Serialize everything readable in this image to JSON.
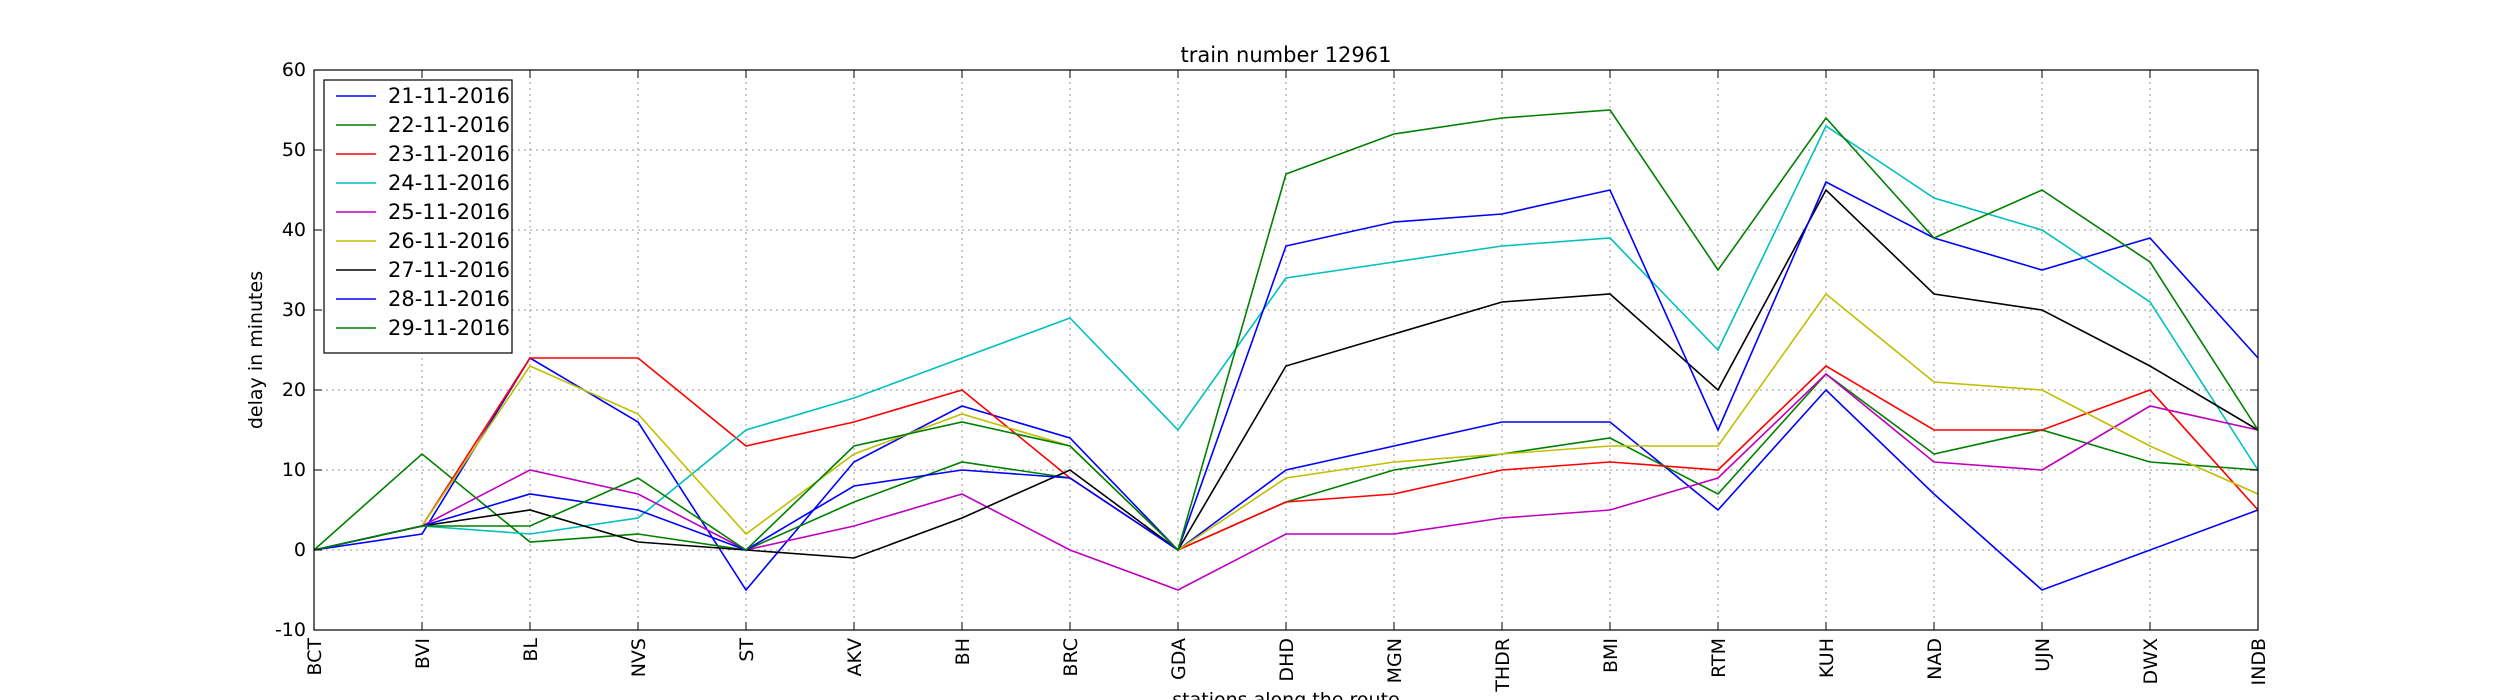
{
  "chart_data": {
    "type": "line",
    "title": "train number 12961",
    "xlabel": "stations along the route",
    "ylabel": "delay in minutes",
    "ylim": [
      -10,
      60
    ],
    "yticks": [
      -10,
      0,
      10,
      20,
      30,
      40,
      50,
      60
    ],
    "grid": true,
    "legend_position": "top-left",
    "categories": [
      "BCT",
      "BVI",
      "BL",
      "NVS",
      "ST",
      "AKV",
      "BH",
      "BRC",
      "GDA",
      "DHD",
      "MGN",
      "THDR",
      "BMI",
      "RTM",
      "KUH",
      "NAD",
      "UJN",
      "DWX",
      "INDB"
    ],
    "series": [
      {
        "name": "21-11-2016",
        "color": "#0000ff",
        "values": [
          0,
          2,
          24,
          16,
          -5,
          11,
          18,
          14,
          0,
          10,
          13,
          16,
          16,
          5,
          20,
          7,
          -5,
          0,
          5
        ]
      },
      {
        "name": "22-11-2016",
        "color": "#008000",
        "values": [
          0,
          12,
          1,
          2,
          0,
          6,
          11,
          9,
          0,
          6,
          10,
          12,
          14,
          7,
          22,
          12,
          15,
          11,
          10
        ]
      },
      {
        "name": "23-11-2016",
        "color": "#ff0000",
        "values": [
          0,
          3,
          24,
          24,
          13,
          16,
          20,
          9,
          0,
          6,
          7,
          10,
          11,
          10,
          23,
          15,
          15,
          20,
          5
        ]
      },
      {
        "name": "24-11-2016",
        "color": "#00bfbf",
        "values": [
          0,
          3,
          2,
          4,
          15,
          19,
          24,
          29,
          15,
          34,
          36,
          38,
          39,
          25,
          53,
          44,
          40,
          31,
          10
        ]
      },
      {
        "name": "25-11-2016",
        "color": "#bf00bf",
        "values": [
          0,
          3,
          10,
          7,
          0,
          3,
          7,
          0,
          -5,
          2,
          2,
          4,
          5,
          9,
          22,
          11,
          10,
          18,
          15
        ]
      },
      {
        "name": "26-11-2016",
        "color": "#bfbf00",
        "values": [
          0,
          3,
          23,
          17,
          2,
          12,
          17,
          13,
          0,
          9,
          11,
          12,
          13,
          13,
          32,
          21,
          20,
          13,
          7
        ]
      },
      {
        "name": "27-11-2016",
        "color": "#000000",
        "values": [
          0,
          3,
          5,
          1,
          0,
          -1,
          4,
          10,
          0,
          23,
          27,
          31,
          32,
          20,
          45,
          32,
          30,
          23,
          15
        ]
      },
      {
        "name": "28-11-2016",
        "color": "#0000ff",
        "values": [
          0,
          3,
          7,
          5,
          0,
          8,
          10,
          9,
          0,
          38,
          41,
          42,
          45,
          15,
          46,
          39,
          35,
          39,
          24
        ]
      },
      {
        "name": "29-11-2016",
        "color": "#008000",
        "values": [
          0,
          3,
          3,
          9,
          0,
          13,
          16,
          13,
          0,
          47,
          52,
          54,
          55,
          35,
          54,
          39,
          45,
          36,
          15
        ]
      }
    ]
  }
}
